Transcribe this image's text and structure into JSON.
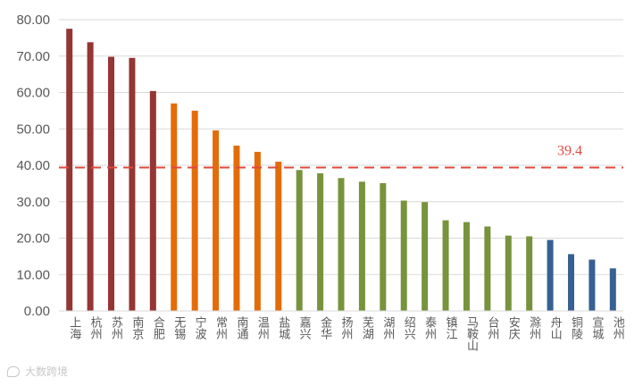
{
  "chart_data": {
    "type": "bar",
    "categories": [
      "上海",
      "杭州",
      "苏州",
      "南京",
      "合肥",
      "无锡",
      "宁波",
      "常州",
      "南通",
      "温州",
      "盐城",
      "嘉兴",
      "金华",
      "扬州",
      "芜湖",
      "湖州",
      "绍兴",
      "泰州",
      "镇江",
      "马鞍山",
      "台州",
      "安庆",
      "滁州",
      "舟山",
      "铜陵",
      "宣城",
      "池州"
    ],
    "values": [
      77.5,
      73.8,
      69.8,
      69.5,
      60.4,
      57.0,
      55.0,
      49.6,
      45.4,
      43.7,
      41.0,
      38.7,
      37.8,
      36.5,
      35.5,
      35.1,
      30.3,
      29.9,
      24.9,
      24.4,
      23.2,
      20.7,
      20.5,
      19.5,
      15.6,
      14.1,
      11.7
    ],
    "colors": [
      "#943634",
      "#943634",
      "#943634",
      "#943634",
      "#943634",
      "#E36C09",
      "#E36C09",
      "#E36C09",
      "#E36C09",
      "#E36C09",
      "#E36C09",
      "#77933C",
      "#77933C",
      "#77933C",
      "#77933C",
      "#77933C",
      "#77933C",
      "#77933C",
      "#77933C",
      "#77933C",
      "#77933C",
      "#77933C",
      "#77933C",
      "#376092",
      "#376092",
      "#376092",
      "#376092"
    ],
    "ylim": [
      0,
      80
    ],
    "yticks": [
      "0.00",
      "10.00",
      "20.00",
      "30.00",
      "40.00",
      "50.00",
      "60.00",
      "70.00",
      "80.00"
    ],
    "grid": true,
    "reference_line": {
      "value": 39.4,
      "label": "39.4",
      "color": "#E0483D",
      "style": "dashed"
    },
    "title": "",
    "xlabel": "",
    "ylabel": ""
  },
  "watermark": {
    "text": "大数跨境"
  }
}
